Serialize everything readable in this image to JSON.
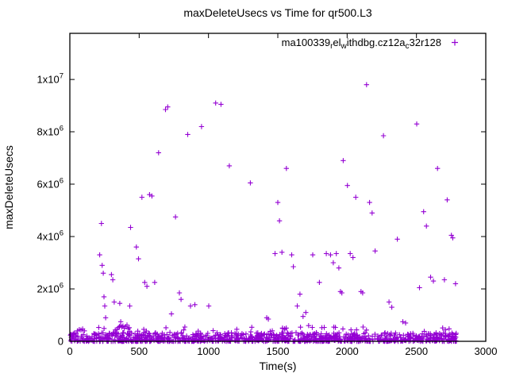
{
  "chart_data": {
    "type": "scatter",
    "title": "maxDeleteUsecs vs Time for qr500.L3",
    "xlabel": "Time(s)",
    "ylabel": "maxDeleteUsecs",
    "xlim": [
      0,
      3000
    ],
    "ylim": [
      0,
      11760000
    ],
    "xticks": [
      0,
      500,
      1000,
      1500,
      2000,
      2500,
      3000
    ],
    "yticks": [
      {
        "value": 0,
        "label": "0"
      },
      {
        "value": 2000000,
        "label": "2x10^6"
      },
      {
        "value": 4000000,
        "label": "4x10^6"
      },
      {
        "value": 6000000,
        "label": "6x10^6"
      },
      {
        "value": 8000000,
        "label": "8x10^6"
      },
      {
        "value": 10000000,
        "label": "1x10^7"
      }
    ],
    "grid": false,
    "legend": {
      "position": "top-right-inside",
      "label_plain": "ma100339_rel_withdbg.cz12a_c32r128",
      "segments": [
        {
          "t": "ma100339"
        },
        {
          "t": "r",
          "sub": true
        },
        {
          "t": "el"
        },
        {
          "t": "w",
          "sub": true
        },
        {
          "t": "ithdbg.cz12a"
        },
        {
          "t": "c",
          "sub": true
        },
        {
          "t": "32r128"
        }
      ]
    },
    "marker": {
      "shape": "plus",
      "color": "#9400d3",
      "size": 3.2
    },
    "series": [
      {
        "name": "ma100339_rel_withdbg.cz12a_c32r128",
        "outlier_points": [
          [
            55,
            400000
          ],
          [
            68,
            450000
          ],
          [
            80,
            430000
          ],
          [
            92,
            470000
          ],
          [
            105,
            400000
          ],
          [
            215,
            3300000
          ],
          [
            228,
            4500000
          ],
          [
            233,
            2900000
          ],
          [
            241,
            2600000
          ],
          [
            246,
            1700000
          ],
          [
            252,
            1350000
          ],
          [
            258,
            900000
          ],
          [
            300,
            2550000
          ],
          [
            310,
            2350000
          ],
          [
            320,
            1500000
          ],
          [
            340,
            450000
          ],
          [
            350,
            520000
          ],
          [
            358,
            560000
          ],
          [
            360,
            1450000
          ],
          [
            366,
            600000
          ],
          [
            367,
            750000
          ],
          [
            375,
            545000
          ],
          [
            383,
            585000
          ],
          [
            392,
            500000
          ],
          [
            402,
            560000
          ],
          [
            412,
            620000
          ],
          [
            420,
            480000
          ],
          [
            428,
            520000
          ],
          [
            432,
            1350000
          ],
          [
            438,
            4350000
          ],
          [
            480,
            3600000
          ],
          [
            495,
            3150000
          ],
          [
            520,
            5500000
          ],
          [
            540,
            2250000
          ],
          [
            556,
            2100000
          ],
          [
            575,
            5600000
          ],
          [
            592,
            5550000
          ],
          [
            612,
            2250000
          ],
          [
            640,
            7200000
          ],
          [
            690,
            8850000
          ],
          [
            706,
            8950000
          ],
          [
            733,
            1050000
          ],
          [
            762,
            4750000
          ],
          [
            790,
            1850000
          ],
          [
            802,
            1600000
          ],
          [
            850,
            7900000
          ],
          [
            870,
            1350000
          ],
          [
            902,
            1400000
          ],
          [
            950,
            8200000
          ],
          [
            1002,
            1350000
          ],
          [
            1052,
            9100000
          ],
          [
            1090,
            9050000
          ],
          [
            1150,
            6700000
          ],
          [
            1302,
            6050000
          ],
          [
            1420,
            900000
          ],
          [
            1432,
            850000
          ],
          [
            1480,
            3350000
          ],
          [
            1500,
            5300000
          ],
          [
            1512,
            4600000
          ],
          [
            1530,
            3400000
          ],
          [
            1562,
            6600000
          ],
          [
            1600,
            3300000
          ],
          [
            1612,
            2850000
          ],
          [
            1640,
            1350000
          ],
          [
            1660,
            1800000
          ],
          [
            1682,
            950000
          ],
          [
            1702,
            1100000
          ],
          [
            1722,
            600000
          ],
          [
            1752,
            3300000
          ],
          [
            1800,
            2250000
          ],
          [
            1850,
            3350000
          ],
          [
            1880,
            3300000
          ],
          [
            1900,
            3000000
          ],
          [
            1922,
            3350000
          ],
          [
            1940,
            2800000
          ],
          [
            1952,
            1900000
          ],
          [
            1962,
            1850000
          ],
          [
            1972,
            6900000
          ],
          [
            2002,
            5950000
          ],
          [
            2022,
            3350000
          ],
          [
            2042,
            3200000
          ],
          [
            2062,
            5500000
          ],
          [
            2100,
            1900000
          ],
          [
            2112,
            1850000
          ],
          [
            2140,
            9800000
          ],
          [
            2162,
            5300000
          ],
          [
            2180,
            4900000
          ],
          [
            2202,
            3450000
          ],
          [
            2262,
            7850000
          ],
          [
            2302,
            1500000
          ],
          [
            2322,
            1300000
          ],
          [
            2362,
            3900000
          ],
          [
            2402,
            750000
          ],
          [
            2422,
            700000
          ],
          [
            2502,
            8300000
          ],
          [
            2522,
            2050000
          ],
          [
            2552,
            4950000
          ],
          [
            2572,
            4400000
          ],
          [
            2602,
            2450000
          ],
          [
            2622,
            2300000
          ],
          [
            2652,
            6600000
          ],
          [
            2702,
            2350000
          ],
          [
            2722,
            5400000
          ],
          [
            2752,
            4050000
          ],
          [
            2762,
            3950000
          ],
          [
            2782,
            2200000
          ]
        ],
        "baseline_bands": [
          {
            "description": "dense noise band hugging y≈0 across the full time range",
            "x_range": [
              0,
              2800
            ],
            "y_min": 0,
            "y_max": 330000,
            "count": 1000,
            "pow": 2,
            "seed": 42
          },
          {
            "description": "sparse scatter just above the dense band",
            "x_range": [
              0,
              2800
            ],
            "y_min": 300000,
            "y_max": 550000,
            "count": 45,
            "pow": 1,
            "seed": 7
          }
        ]
      }
    ]
  }
}
